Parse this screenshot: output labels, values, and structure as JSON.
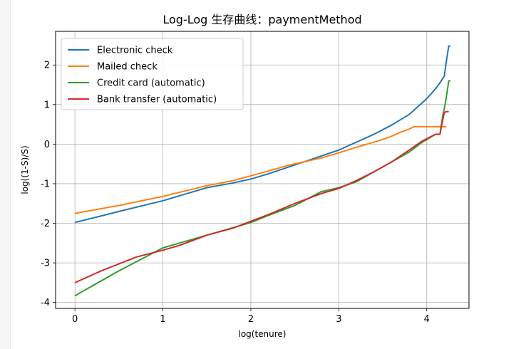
{
  "chart_data": {
    "type": "line",
    "title": "Log-Log 生存曲线：paymentMethod",
    "xlabel": "log(tenure)",
    "ylabel": "log((1-S)/S)",
    "xlim": [
      -0.22,
      4.48
    ],
    "ylim": [
      -4.15,
      2.85
    ],
    "xticks": [
      "0",
      "1",
      "2",
      "3",
      "4"
    ],
    "yticks": [
      "-4",
      "-3",
      "-2",
      "-1",
      "0",
      "1",
      "2"
    ],
    "grid": true,
    "legend_position": "top-left",
    "series": [
      {
        "name": "Electronic check",
        "color": "#1f77b4",
        "x": [
          0,
          0.5,
          1.0,
          1.5,
          1.8,
          2.0,
          2.2,
          2.4,
          2.6,
          2.8,
          3.0,
          3.2,
          3.4,
          3.6,
          3.8,
          3.9,
          4.0,
          4.1,
          4.15,
          4.2,
          4.22,
          4.25,
          4.27
        ],
        "y": [
          -1.98,
          -1.7,
          -1.43,
          -1.1,
          -0.98,
          -0.88,
          -0.75,
          -0.6,
          -0.45,
          -0.3,
          -0.15,
          0.05,
          0.25,
          0.48,
          0.75,
          0.95,
          1.15,
          1.4,
          1.55,
          1.72,
          2.05,
          2.48,
          2.48
        ]
      },
      {
        "name": "Mailed check",
        "color": "#ff7f0e",
        "x": [
          0,
          0.5,
          1.0,
          1.5,
          1.8,
          2.0,
          2.2,
          2.4,
          2.6,
          2.8,
          3.0,
          3.2,
          3.4,
          3.5,
          3.6,
          3.7,
          3.8,
          3.85,
          3.9,
          4.0,
          4.1,
          4.2,
          4.22
        ],
        "y": [
          -1.75,
          -1.55,
          -1.32,
          -1.05,
          -0.92,
          -0.8,
          -0.68,
          -0.55,
          -0.45,
          -0.35,
          -0.22,
          -0.08,
          0.05,
          0.12,
          0.2,
          0.3,
          0.38,
          0.44,
          0.44,
          0.44,
          0.44,
          0.44,
          0.44
        ]
      },
      {
        "name": "Credit card (automatic)",
        "color": "#2ca02c",
        "x": [
          0,
          0.5,
          1.0,
          1.5,
          2.0,
          2.2,
          2.5,
          2.8,
          3.0,
          3.2,
          3.4,
          3.6,
          3.8,
          3.95,
          4.1,
          4.15,
          4.18,
          4.2,
          4.22,
          4.25,
          4.27
        ],
        "y": [
          -3.83,
          -3.2,
          -2.62,
          -2.3,
          -1.98,
          -1.8,
          -1.55,
          -1.2,
          -1.1,
          -0.95,
          -0.7,
          -0.45,
          -0.2,
          0.05,
          0.25,
          0.25,
          0.7,
          0.9,
          1.15,
          1.6,
          1.6
        ]
      },
      {
        "name": "Bank transfer (automatic)",
        "color": "#d62728",
        "x": [
          0,
          0.3,
          0.7,
          1.0,
          1.2,
          1.5,
          1.8,
          2.0,
          2.2,
          2.5,
          2.8,
          3.0,
          3.2,
          3.4,
          3.6,
          3.8,
          3.95,
          4.1,
          4.15,
          4.18,
          4.2,
          4.22,
          4.25
        ],
        "y": [
          -3.5,
          -3.2,
          -2.85,
          -2.68,
          -2.55,
          -2.3,
          -2.12,
          -1.95,
          -1.78,
          -1.5,
          -1.25,
          -1.12,
          -0.92,
          -0.7,
          -0.45,
          -0.15,
          0.08,
          0.25,
          0.25,
          0.6,
          0.8,
          0.82,
          0.82
        ]
      }
    ]
  }
}
